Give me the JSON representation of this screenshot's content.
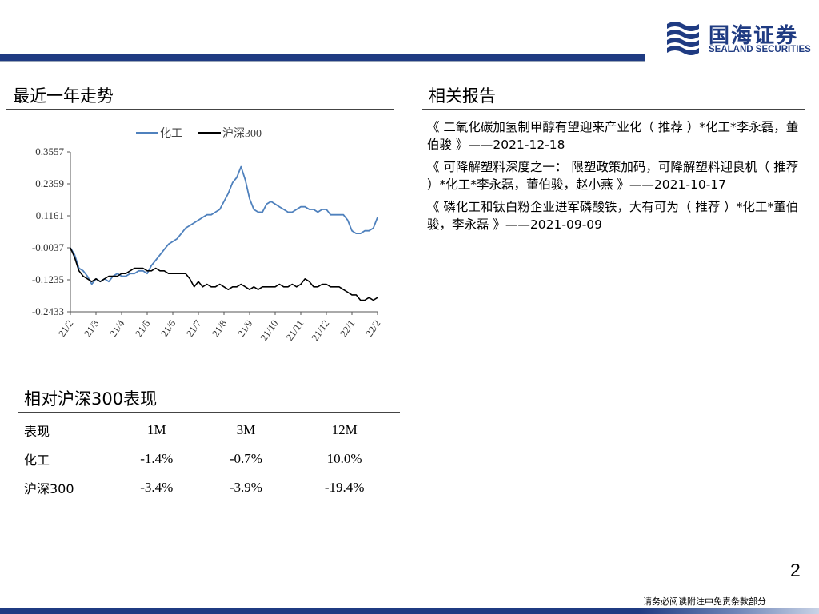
{
  "header": {
    "logo_cn": "国海证券",
    "logo_en": "SEALAND SECURITIES",
    "brand_color": "#1f3b82"
  },
  "trend": {
    "title": "最近一年走势"
  },
  "chart_data": {
    "type": "line",
    "legend": [
      "化工",
      "沪深300"
    ],
    "legend_position": "top",
    "y_ticks": [
      "0.3557",
      "0.2359",
      "0.1161",
      "-0.0037",
      "-0.1235",
      "-0.2433"
    ],
    "ylim": [
      -0.2433,
      0.3557
    ],
    "x_ticks": [
      "21/2",
      "21/3",
      "21/4",
      "21/5",
      "21/6",
      "21/7",
      "21/8",
      "21/9",
      "21/10",
      "21/11",
      "21/12",
      "22/1",
      "22/2"
    ],
    "grid": false,
    "series": [
      {
        "name": "化工",
        "color": "#4f81bd",
        "values": [
          -0.004,
          -0.03,
          -0.08,
          -0.09,
          -0.11,
          -0.14,
          -0.12,
          -0.13,
          -0.12,
          -0.13,
          -0.11,
          -0.1,
          -0.11,
          -0.11,
          -0.1,
          -0.1,
          -0.09,
          -0.09,
          -0.1,
          -0.07,
          -0.05,
          -0.03,
          -0.01,
          0.01,
          0.02,
          0.03,
          0.05,
          0.07,
          0.08,
          0.09,
          0.1,
          0.11,
          0.12,
          0.12,
          0.13,
          0.14,
          0.17,
          0.2,
          0.24,
          0.26,
          0.3,
          0.25,
          0.18,
          0.14,
          0.13,
          0.13,
          0.16,
          0.17,
          0.16,
          0.15,
          0.14,
          0.13,
          0.13,
          0.14,
          0.15,
          0.15,
          0.14,
          0.14,
          0.13,
          0.14,
          0.14,
          0.12,
          0.12,
          0.12,
          0.12,
          0.1,
          0.06,
          0.05,
          0.05,
          0.06,
          0.06,
          0.07,
          0.11
        ]
      },
      {
        "name": "沪深300",
        "color": "#000000",
        "values": [
          -0.004,
          -0.04,
          -0.09,
          -0.11,
          -0.12,
          -0.13,
          -0.12,
          -0.13,
          -0.12,
          -0.11,
          -0.11,
          -0.11,
          -0.1,
          -0.1,
          -0.09,
          -0.08,
          -0.08,
          -0.08,
          -0.09,
          -0.09,
          -0.08,
          -0.09,
          -0.09,
          -0.1,
          -0.1,
          -0.1,
          -0.1,
          -0.1,
          -0.12,
          -0.15,
          -0.13,
          -0.15,
          -0.14,
          -0.15,
          -0.15,
          -0.14,
          -0.15,
          -0.16,
          -0.15,
          -0.15,
          -0.14,
          -0.15,
          -0.16,
          -0.15,
          -0.16,
          -0.15,
          -0.15,
          -0.15,
          -0.15,
          -0.14,
          -0.15,
          -0.15,
          -0.14,
          -0.15,
          -0.14,
          -0.12,
          -0.13,
          -0.15,
          -0.15,
          -0.14,
          -0.14,
          -0.15,
          -0.15,
          -0.15,
          -0.16,
          -0.17,
          -0.18,
          -0.18,
          -0.2,
          -0.2,
          -0.19,
          -0.2,
          -0.19
        ]
      }
    ]
  },
  "relative": {
    "title": "相对沪深300表现",
    "headers": [
      "表现",
      "1M",
      "3M",
      "12M"
    ],
    "rows": [
      [
        "化工",
        "-1.4%",
        "-0.7%",
        "10.0%"
      ],
      [
        "沪深300",
        "-3.4%",
        "-3.9%",
        "-19.4%"
      ]
    ]
  },
  "reports": {
    "title": "相关报告",
    "items": [
      "《 二氧化碳加氢制甲醇有望迎来产业化（ 推荐 ）*化工*李永磊，董伯骏 》——2021-12-18",
      "《 可降解塑料深度之一： 限塑政策加码，可降解塑料迎良机（ 推荐 ）*化工*李永磊，董伯骏，赵小燕 》——2021-10-17",
      "《 磷化工和钛白粉企业进军磷酸铁，大有可为（ 推荐 ）*化工*董伯骏，李永磊 》——2021-09-09"
    ]
  },
  "footer": {
    "page_number": "2",
    "disclaimer": "请务必阅读附注中免责条款部分"
  }
}
